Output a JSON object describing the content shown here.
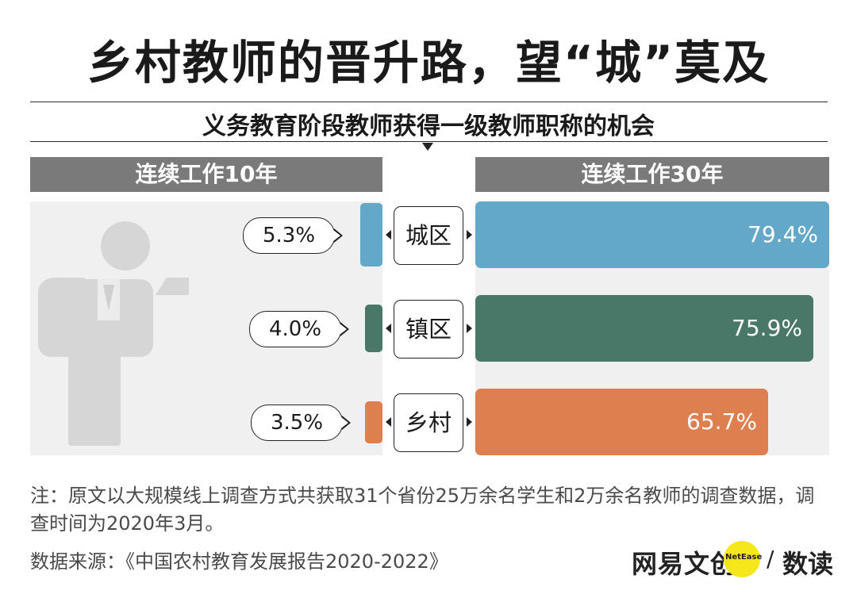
{
  "title": "乡村教师的晋升路，望“城”莫及",
  "subtitle": "义务教育阶段教师获得一级教师职称的机会",
  "chart_data": {
    "type": "bar",
    "categories": [
      "城区",
      "镇区",
      "乡村"
    ],
    "series": [
      {
        "name": "连续工作10年",
        "values": [
          5.3,
          4.0,
          3.5
        ],
        "labels": [
          "5.3%",
          "4.0%",
          "3.5%"
        ]
      },
      {
        "name": "连续工作30年",
        "values": [
          79.4,
          75.9,
          65.7
        ],
        "labels": [
          "79.4%",
          "75.9%",
          "65.7%"
        ]
      }
    ],
    "colors": [
      "#63a8c9",
      "#497768",
      "#de7f4f"
    ],
    "unit": "%"
  },
  "note": "注：原文以大规模线上调查方式共获取31个省份25万余名学生和2万余名教师的调查数据，调查时间为2020年3月。",
  "source": "数据来源：《中国农村教育发展报告2020-2022》",
  "logo": {
    "brand": "网易文创",
    "circle_text": "NetEase",
    "slash": "/",
    "sub": "数读"
  },
  "icons": [
    "person-silhouette-icon",
    "arrow-left-icon",
    "arrow-right-icon",
    "speech-pointer-icon"
  ]
}
